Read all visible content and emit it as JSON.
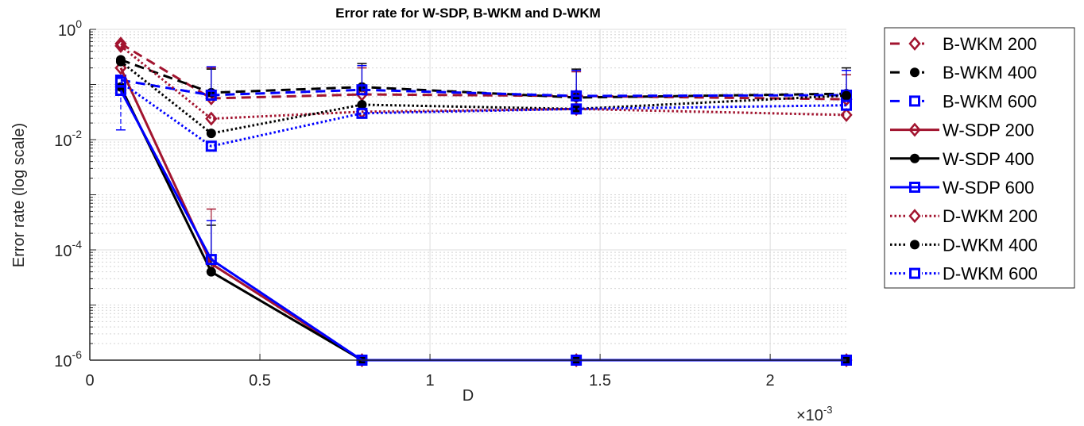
{
  "chart_data": {
    "type": "line",
    "title": "Error rate for W-SDP, B-WKM and D-WKM",
    "xlabel": "D",
    "ylabel": "Error rate (log scale)",
    "x_multiplier_label": "×10",
    "x_multiplier_exp": "-3",
    "xscale": "linear",
    "yscale": "log",
    "xlim": [
      0,
      2.224
    ],
    "ylim": [
      1e-06,
      1
    ],
    "grid": true,
    "minor_grid": true,
    "legend_position": "outside-right",
    "x_ticks": [
      0,
      0.5,
      1,
      1.5,
      2
    ],
    "x_tick_labels": [
      "0",
      "0.5",
      "1",
      "1.5",
      "2"
    ],
    "y_ticks": [
      1e-06,
      0.0001,
      0.01,
      1
    ],
    "y_tick_labels": [
      {
        "base": "10",
        "exp": "-6"
      },
      {
        "base": "10",
        "exp": "-4"
      },
      {
        "base": "10",
        "exp": "-2"
      },
      {
        "base": "10",
        "exp": "0"
      }
    ],
    "x": [
      0.091,
      0.357,
      0.8,
      1.43,
      2.224
    ],
    "series": [
      {
        "name": "B-WKM 200",
        "color": "#A2142F",
        "line": "dashed",
        "marker": "diamond",
        "values": [
          0.55,
          0.056,
          0.066,
          0.062,
          0.054
        ],
        "err_upper": [
          null,
          0.2,
          0.2,
          0.17,
          0.15
        ]
      },
      {
        "name": "B-WKM 400",
        "color": "#000000",
        "line": "dashed",
        "marker": "circle",
        "values": [
          0.28,
          0.071,
          0.09,
          0.058,
          0.068
        ],
        "err_upper": [
          null,
          0.19,
          0.24,
          0.19,
          0.2
        ]
      },
      {
        "name": "B-WKM 600",
        "color": "#0000FF",
        "line": "dashed",
        "marker": "square",
        "values": [
          0.12,
          0.064,
          0.08,
          0.062,
          0.064
        ],
        "err_upper": [
          null,
          0.21,
          0.22,
          0.18,
          0.18
        ]
      },
      {
        "name": "W-SDP 200",
        "color": "#A2142F",
        "line": "solid",
        "marker": "diamond",
        "values": [
          0.2,
          5.6e-05,
          1e-06,
          1e-06,
          1e-06
        ],
        "err_upper": [
          null,
          0.00055,
          null,
          null,
          null
        ]
      },
      {
        "name": "W-SDP 400",
        "color": "#000000",
        "line": "solid",
        "marker": "circle",
        "values": [
          0.09,
          4e-05,
          1e-06,
          1e-06,
          1e-06
        ],
        "err_upper": [
          null,
          0.00028,
          null,
          null,
          null
        ]
      },
      {
        "name": "W-SDP 600",
        "color": "#0000FF",
        "line": "solid",
        "marker": "square",
        "values": [
          0.078,
          6.7e-05,
          1e-06,
          1e-06,
          1e-06
        ],
        "err_upper": [
          null,
          0.00034,
          null,
          null,
          null
        ],
        "err_lower": [
          0.015,
          null,
          null,
          null,
          null
        ]
      },
      {
        "name": "D-WKM 200",
        "color": "#A2142F",
        "line": "dotted",
        "marker": "diamond",
        "values": [
          0.5,
          0.024,
          0.032,
          0.036,
          0.028
        ]
      },
      {
        "name": "D-WKM 400",
        "color": "#000000",
        "line": "dotted",
        "marker": "circle",
        "values": [
          0.26,
          0.013,
          0.043,
          0.036,
          0.063
        ]
      },
      {
        "name": "D-WKM 600",
        "color": "#0000FF",
        "line": "dotted",
        "marker": "square",
        "values": [
          0.11,
          0.0076,
          0.03,
          0.036,
          0.042
        ]
      }
    ]
  }
}
